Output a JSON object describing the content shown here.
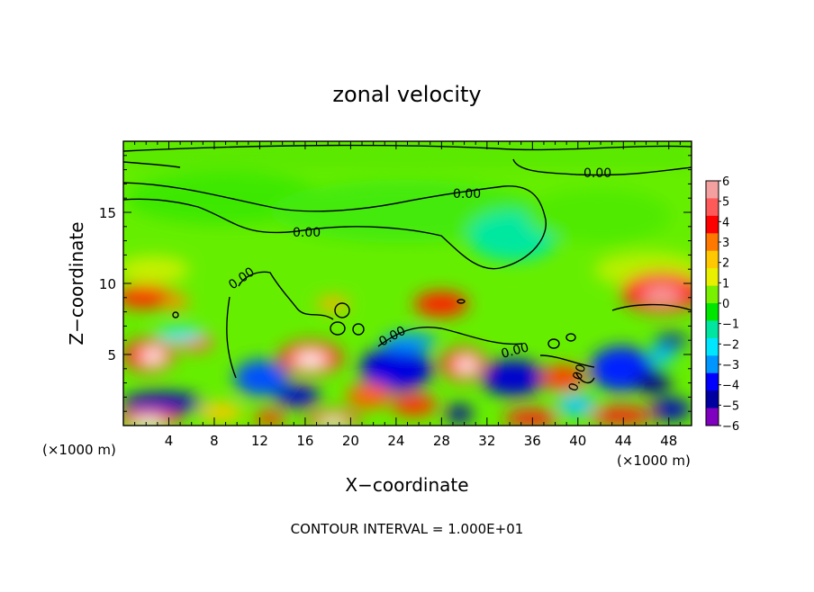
{
  "chart_data": {
    "type": "heatmap",
    "title": "zonal velocity",
    "xlabel": "X−coordinate",
    "ylabel": "Z−coordinate",
    "x_unit_left": "(×1000 m)",
    "x_unit_right": "(×1000 m)",
    "footer": "CONTOUR INTERVAL = 1.000E+01",
    "xlim": [
      0,
      50
    ],
    "ylim": [
      0,
      20
    ],
    "x_ticks": [
      4,
      8,
      12,
      16,
      20,
      24,
      28,
      32,
      36,
      40,
      44,
      48
    ],
    "y_ticks": [
      5,
      10,
      15
    ],
    "contour_label": "0.00",
    "colorbar": {
      "levels": [
        6,
        5,
        4,
        3,
        2,
        1,
        0,
        -1,
        -2,
        -3,
        -4,
        -5,
        -6
      ],
      "labels": [
        "6",
        "5",
        "4",
        "3",
        "2",
        "1",
        "0",
        "−1",
        "−2",
        "−3",
        "−4",
        "−5",
        "−6"
      ],
      "colors": [
        "#f4a0a0",
        "#ff5a5a",
        "#ff0000",
        "#ff7800",
        "#ffc800",
        "#e8f000",
        "#78f000",
        "#00e600",
        "#00e6a0",
        "#00e6ff",
        "#0096ff",
        "#0000ff",
        "#0000a0",
        "#8000c0"
      ]
    }
  }
}
